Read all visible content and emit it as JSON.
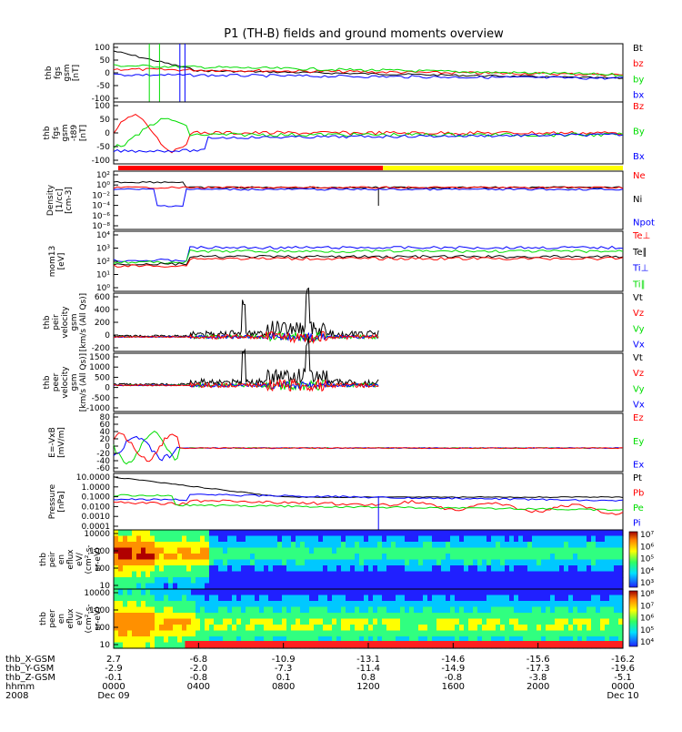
{
  "title": "P1 (TH-B) fields and ground moments overview",
  "colors": {
    "black": "#000000",
    "red": "#ff0000",
    "green": "#00dd00",
    "blue": "#0000ff",
    "yellow": "#ffff00"
  },
  "chart_data": [
    {
      "type": "line",
      "name": "fgs",
      "ylabel": [
        "thb",
        "fgs",
        "gsm",
        "[nT]"
      ],
      "ylim": [
        -100,
        100
      ],
      "yticks": [
        "100",
        "50",
        "0",
        "-50",
        "-100"
      ],
      "legend": [
        {
          "label": "Bt",
          "color": "#000000"
        },
        {
          "label": "bz",
          "color": "#ff0000"
        },
        {
          "label": "by",
          "color": "#00dd00"
        },
        {
          "label": "bx",
          "color": "#0000ff"
        }
      ]
    },
    {
      "type": "line",
      "name": "fgs-t89",
      "ylabel": [
        "thb",
        "fgs",
        "gsm",
        "-t89",
        "[nT]"
      ],
      "ylim": [
        -100,
        100
      ],
      "yticks": [
        "100",
        "50",
        "0",
        "-50",
        "-100"
      ],
      "legend": [
        {
          "label": "Bz",
          "color": "#ff0000"
        },
        {
          "label": "By",
          "color": "#00dd00"
        },
        {
          "label": "Bx",
          "color": "#0000ff"
        }
      ]
    },
    {
      "type": "line",
      "name": "density",
      "ylabel": [
        "Density",
        "[1/cc]",
        "[cm-3]"
      ],
      "scale": "log",
      "yticks": [
        "10²",
        "10⁰",
        "10⁻²",
        "10⁻⁴",
        "10⁻⁶",
        "10⁻⁸"
      ],
      "legend": [
        {
          "label": "Ne",
          "color": "#ff0000"
        },
        {
          "label": "Ni",
          "color": "#000000"
        },
        {
          "label": "Npot",
          "color": "#0000ff"
        }
      ]
    },
    {
      "type": "line",
      "name": "temperature",
      "ylabel": [
        "mom13",
        "[eV]"
      ],
      "scale": "log",
      "yticks": [
        "10⁴",
        "10³",
        "10²",
        "10¹",
        "10⁰"
      ],
      "legend": [
        {
          "label": "Te⊥",
          "color": "#ff0000"
        },
        {
          "label": "Te∥",
          "color": "#000000"
        },
        {
          "label": "Ti⊥",
          "color": "#0000ff"
        },
        {
          "label": "Ti∥",
          "color": "#00dd00"
        }
      ]
    },
    {
      "type": "line",
      "name": "peir-velocity",
      "ylabel": [
        "thb",
        "peir",
        "velocity",
        "gsm",
        "[km/s (All Qs)]"
      ],
      "ylim": [
        -200,
        600
      ],
      "yticks": [
        "600",
        "400",
        "200",
        "0",
        "-200"
      ],
      "legend": [
        {
          "label": "Vt",
          "color": "#000000"
        },
        {
          "label": "Vz",
          "color": "#ff0000"
        },
        {
          "label": "Vy",
          "color": "#00dd00"
        },
        {
          "label": "Vx",
          "color": "#0000ff"
        }
      ]
    },
    {
      "type": "line",
      "name": "peer-velocity",
      "ylabel": [
        "thb",
        "peer",
        "velocity",
        "gsm",
        "[km/s (All Qs)]"
      ],
      "ylim": [
        -1000,
        1500
      ],
      "yticks": [
        "1500",
        "1000",
        "500",
        "0",
        "-500",
        "-1000"
      ],
      "legend": [
        {
          "label": "Vt",
          "color": "#000000"
        },
        {
          "label": "Vz",
          "color": "#ff0000"
        },
        {
          "label": "Vy",
          "color": "#00dd00"
        },
        {
          "label": "Vx",
          "color": "#0000ff"
        }
      ]
    },
    {
      "type": "line",
      "name": "efield",
      "ylabel": [
        "E=-VxB",
        "[mV/m]"
      ],
      "ylim": [
        -60,
        80
      ],
      "yticks": [
        "80",
        "60",
        "40",
        "20",
        "0",
        "-20",
        "-40",
        "-60"
      ],
      "legend": [
        {
          "label": "Ez",
          "color": "#ff0000"
        },
        {
          "label": "Ey",
          "color": "#00dd00"
        },
        {
          "label": "Ex",
          "color": "#0000ff"
        }
      ]
    },
    {
      "type": "line",
      "name": "pressure",
      "ylabel": [
        "Pressure",
        "[nPa]"
      ],
      "scale": "log",
      "yticks": [
        "10.0000",
        "1.0000",
        "0.1000",
        "0.0100",
        "0.0010",
        "0.0001"
      ],
      "legend": [
        {
          "label": "Pt",
          "color": "#000000"
        },
        {
          "label": "Pb",
          "color": "#ff0000"
        },
        {
          "label": "Pe",
          "color": "#00dd00"
        },
        {
          "label": "Pi",
          "color": "#0000ff"
        }
      ]
    },
    {
      "type": "heatmap",
      "name": "peir-eflux",
      "ylabel": [
        "thb",
        "peir",
        "en",
        "eflux",
        "eV/",
        "(cm²-s-",
        "sr-eV)"
      ],
      "scale": "log",
      "yticks": [
        "10000",
        "1000",
        "100",
        "10"
      ],
      "colorbar": [
        "10⁷",
        "10⁶",
        "10⁵",
        "10⁴",
        "10³"
      ]
    },
    {
      "type": "heatmap",
      "name": "peer-eflux",
      "ylabel": [
        "thb",
        "peer",
        "en",
        "eflux",
        "eV/",
        "(cm²-s-",
        "sr-eV)"
      ],
      "scale": "log",
      "yticks": [
        "10000",
        "1000",
        "100",
        "10"
      ],
      "colorbar": [
        "10⁸",
        "10⁷",
        "10⁶",
        "10⁵",
        "10⁴"
      ]
    }
  ],
  "xaxis": {
    "rows": [
      {
        "label": "thb_X-GSM",
        "values": [
          "2.7",
          "-6.8",
          "-10.9",
          "-13.1",
          "-14.6",
          "-15.6",
          "-16.2"
        ]
      },
      {
        "label": "thb_Y-GSM",
        "values": [
          "-2.9",
          "-2.0",
          "-7.3",
          "-11.4",
          "-14.9",
          "-17.3",
          "-19.6"
        ]
      },
      {
        "label": "thb_Z-GSM",
        "values": [
          "-0.1",
          "-0.8",
          "0.1",
          "0.8",
          "-0.8",
          "-3.8",
          "-5.1"
        ]
      },
      {
        "label": "hhmm",
        "values": [
          "0000",
          "0400",
          "0800",
          "1200",
          "1600",
          "2000",
          "0000"
        ]
      }
    ],
    "year": "2008",
    "date_start": "Dec 09",
    "date_end": "Dec 10"
  }
}
